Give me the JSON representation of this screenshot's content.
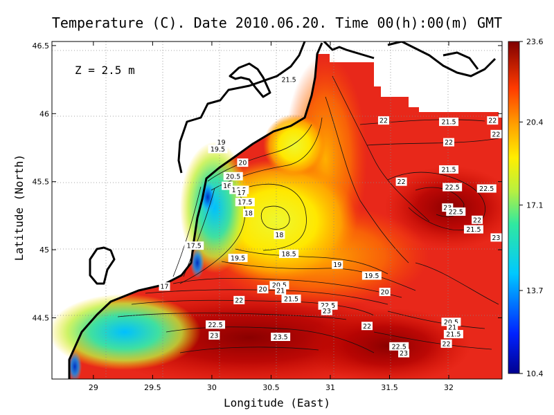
{
  "chart_data": {
    "type": "heatmap",
    "title": "Temperature (C). Date 2010.06.20. Time 00(h):00(m) GMT",
    "annotation": "Z = 2.5 m",
    "xlabel": "Longitude (East)",
    "ylabel": "Latitude (North)",
    "xlim": [
      28.65,
      32.45
    ],
    "ylim": [
      44.05,
      46.53
    ],
    "xticks": [
      29,
      29.5,
      30,
      30.5,
      31,
      31.5,
      32
    ],
    "xtick_labels": [
      "29",
      "29.5",
      "30",
      "30.5",
      "31",
      "31.5",
      "32"
    ],
    "yticks": [
      44.5,
      45,
      45.5,
      46,
      46.5
    ],
    "ytick_labels": [
      "44.5",
      "45",
      "45.5",
      "46",
      "46.5"
    ],
    "grid": true,
    "colorbar": {
      "min": 10.4,
      "max": 23.6,
      "tick_values": [
        23.6,
        20.4,
        17.1,
        13.7,
        10.4
      ],
      "tick_labels": [
        "23.6",
        "20.4",
        "17.1",
        "13.7",
        "10.4"
      ]
    },
    "contour_labels": [
      {
        "lon": 30.65,
        "lat": 46.25,
        "text": "21.5"
      },
      {
        "lon": 31.45,
        "lat": 45.95,
        "text": "22"
      },
      {
        "lon": 32.0,
        "lat": 45.94,
        "text": "21.5"
      },
      {
        "lon": 32.37,
        "lat": 45.95,
        "text": "22"
      },
      {
        "lon": 32.4,
        "lat": 45.85,
        "text": "22"
      },
      {
        "lon": 30.08,
        "lat": 45.79,
        "text": "19"
      },
      {
        "lon": 30.05,
        "lat": 45.74,
        "text": "19.5"
      },
      {
        "lon": 30.26,
        "lat": 45.64,
        "text": "20"
      },
      {
        "lon": 30.18,
        "lat": 45.54,
        "text": "20.5"
      },
      {
        "lon": 32.0,
        "lat": 45.79,
        "text": "22"
      },
      {
        "lon": 32.0,
        "lat": 45.59,
        "text": "21.5"
      },
      {
        "lon": 31.6,
        "lat": 45.5,
        "text": "22"
      },
      {
        "lon": 32.03,
        "lat": 45.46,
        "text": "22.5"
      },
      {
        "lon": 32.32,
        "lat": 45.45,
        "text": "22.5"
      },
      {
        "lon": 30.13,
        "lat": 45.47,
        "text": "16"
      },
      {
        "lon": 30.23,
        "lat": 45.44,
        "text": "16.5"
      },
      {
        "lon": 30.25,
        "lat": 45.42,
        "text": "17"
      },
      {
        "lon": 30.28,
        "lat": 45.35,
        "text": "17.5"
      },
      {
        "lon": 30.31,
        "lat": 45.27,
        "text": "18"
      },
      {
        "lon": 30.57,
        "lat": 45.11,
        "text": "18"
      },
      {
        "lon": 31.99,
        "lat": 45.31,
        "text": "23"
      },
      {
        "lon": 32.06,
        "lat": 45.28,
        "text": "22.5"
      },
      {
        "lon": 32.24,
        "lat": 45.22,
        "text": "22"
      },
      {
        "lon": 32.21,
        "lat": 45.15,
        "text": "21.5"
      },
      {
        "lon": 32.4,
        "lat": 45.09,
        "text": "23"
      },
      {
        "lon": 29.85,
        "lat": 45.03,
        "text": "17.5"
      },
      {
        "lon": 30.65,
        "lat": 44.97,
        "text": "18.5"
      },
      {
        "lon": 30.22,
        "lat": 44.94,
        "text": "19.5"
      },
      {
        "lon": 31.06,
        "lat": 44.89,
        "text": "19"
      },
      {
        "lon": 31.35,
        "lat": 44.81,
        "text": "19.5"
      },
      {
        "lon": 29.6,
        "lat": 44.73,
        "text": "17"
      },
      {
        "lon": 30.57,
        "lat": 44.74,
        "text": "20.5"
      },
      {
        "lon": 30.58,
        "lat": 44.7,
        "text": "21"
      },
      {
        "lon": 30.43,
        "lat": 44.71,
        "text": "20"
      },
      {
        "lon": 31.46,
        "lat": 44.69,
        "text": "20"
      },
      {
        "lon": 30.67,
        "lat": 44.64,
        "text": "21.5"
      },
      {
        "lon": 30.23,
        "lat": 44.63,
        "text": "22"
      },
      {
        "lon": 30.98,
        "lat": 44.59,
        "text": "22.5"
      },
      {
        "lon": 30.97,
        "lat": 44.55,
        "text": "23"
      },
      {
        "lon": 30.03,
        "lat": 44.45,
        "text": "22.5"
      },
      {
        "lon": 31.31,
        "lat": 44.44,
        "text": "22"
      },
      {
        "lon": 30.02,
        "lat": 44.37,
        "text": "23"
      },
      {
        "lon": 30.58,
        "lat": 44.36,
        "text": "23.5"
      },
      {
        "lon": 32.02,
        "lat": 44.47,
        "text": "20.5"
      },
      {
        "lon": 32.03,
        "lat": 44.43,
        "text": "21"
      },
      {
        "lon": 32.04,
        "lat": 44.38,
        "text": "21.5"
      },
      {
        "lon": 31.98,
        "lat": 44.31,
        "text": "22"
      },
      {
        "lon": 31.58,
        "lat": 44.29,
        "text": "22.5"
      },
      {
        "lon": 31.62,
        "lat": 44.24,
        "text": "23"
      }
    ]
  },
  "colors": {
    "land": "#ffffff",
    "coast": "#000000",
    "grid": "#888888",
    "contour": "#111111"
  }
}
